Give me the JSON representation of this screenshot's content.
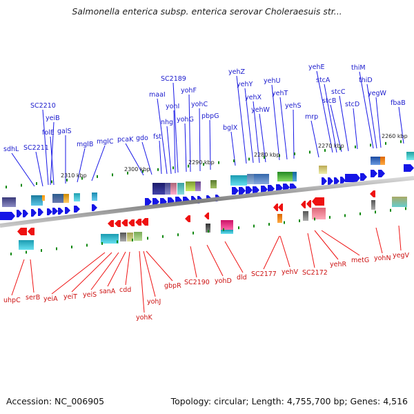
{
  "title": "Salmonella enterica subsp. enterica serovar Choleraesuis str...",
  "footer": {
    "accession": "Accession: NC_006905",
    "summary": "Topology: circular; Length: 4,755,700 bp; Genes: 4,516"
  },
  "colors": {
    "forward_gene": "#1515e6",
    "reverse_gene": "#ee1111",
    "backbone": "#8a8a8a",
    "tick": "#118811",
    "forward_label": "#1a1acd",
    "reverse_label": "#cc1111"
  },
  "position_labels": [
    "2310 kbp",
    "2300 kbp",
    "2290 kbp",
    "2280 kbp",
    "2270 kbp",
    "2260 kbp"
  ],
  "forward_genes": [
    "sdhL",
    "SC2211",
    "SC2210",
    "yeiB",
    "folE",
    "galS",
    "mglB",
    "mglC",
    "pcaK",
    "gdo",
    "fst",
    "maaI",
    "nhg",
    "yohI",
    "SC2189",
    "yohG",
    "yohF",
    "yohC",
    "pbpG",
    "bglX",
    "yehZ",
    "yehY",
    "yehX",
    "yehW",
    "yehU",
    "yehT",
    "yehS",
    "mrp",
    "yehE",
    "stcA",
    "stcB",
    "stcC",
    "stcD",
    "thiM",
    "thiD",
    "yegW",
    "fbaB"
  ],
  "reverse_genes": [
    "uhpC",
    "serB",
    "yeiA",
    "yeiT",
    "yeiS",
    "sanA",
    "cdd",
    "yohK",
    "yohJ",
    "gbpR",
    "SC2190",
    "yohD",
    "dld",
    "SC2177",
    "yehV",
    "SC2172",
    "yehR",
    "metG",
    "yohN",
    "yegV"
  ]
}
